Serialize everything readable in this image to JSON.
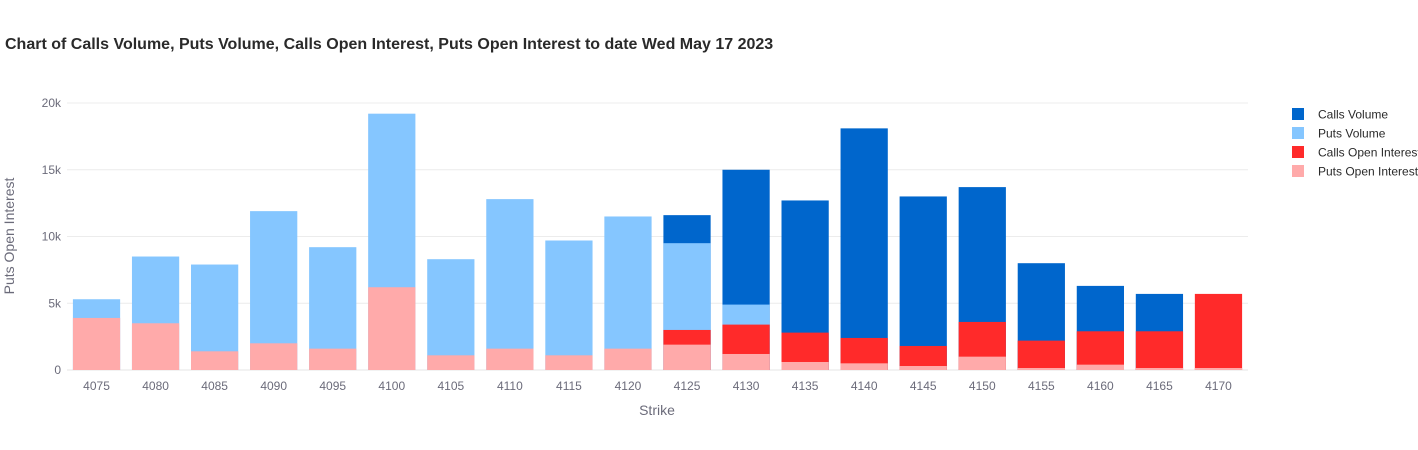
{
  "chart_data": {
    "type": "bar",
    "title": "Chart of Calls Volume, Puts Volume, Calls Open Interest, Puts Open Interest to date Wed May 17 2023",
    "xlabel": "Strike",
    "ylabel": "Puts Open Interest",
    "ylim": [
      0,
      20000
    ],
    "yticks": [
      0,
      5000,
      10000,
      15000,
      20000
    ],
    "ytick_labels": [
      "0",
      "5k",
      "10k",
      "15k",
      "20k"
    ],
    "grid": true,
    "barmode": "overlay",
    "legend_position": "top-right",
    "categories": [
      "4075",
      "4080",
      "4085",
      "4090",
      "4095",
      "4100",
      "4105",
      "4110",
      "4115",
      "4120",
      "4125",
      "4130",
      "4135",
      "4140",
      "4145",
      "4150",
      "4155",
      "4160",
      "4165",
      "4170"
    ],
    "series": [
      {
        "name": "Calls Volume",
        "color": "#0066cc",
        "values": [
          0,
          0,
          0,
          0,
          0,
          0,
          0,
          0,
          0,
          0,
          11600,
          15000,
          12700,
          18100,
          13000,
          13700,
          8000,
          6300,
          5700,
          0
        ]
      },
      {
        "name": "Puts Volume",
        "color": "#85c6ff",
        "values": [
          5300,
          8500,
          7900,
          11900,
          9200,
          19200,
          8300,
          12800,
          9700,
          11500,
          9500,
          4900,
          0,
          0,
          0,
          0,
          0,
          0,
          0,
          0
        ]
      },
      {
        "name": "Calls Open Interest",
        "color": "#ff2a2a",
        "values": [
          0,
          0,
          0,
          0,
          0,
          0,
          0,
          0,
          0,
          0,
          3000,
          3400,
          2800,
          2400,
          1800,
          3600,
          2200,
          2900,
          2900,
          5700
        ]
      },
      {
        "name": "Puts Open Interest",
        "color": "#ffaaaa",
        "values": [
          3900,
          3500,
          1400,
          2000,
          1600,
          6200,
          1100,
          1600,
          1100,
          1600,
          1900,
          1200,
          600,
          500,
          300,
          1000,
          150,
          400,
          150,
          150
        ]
      }
    ]
  }
}
